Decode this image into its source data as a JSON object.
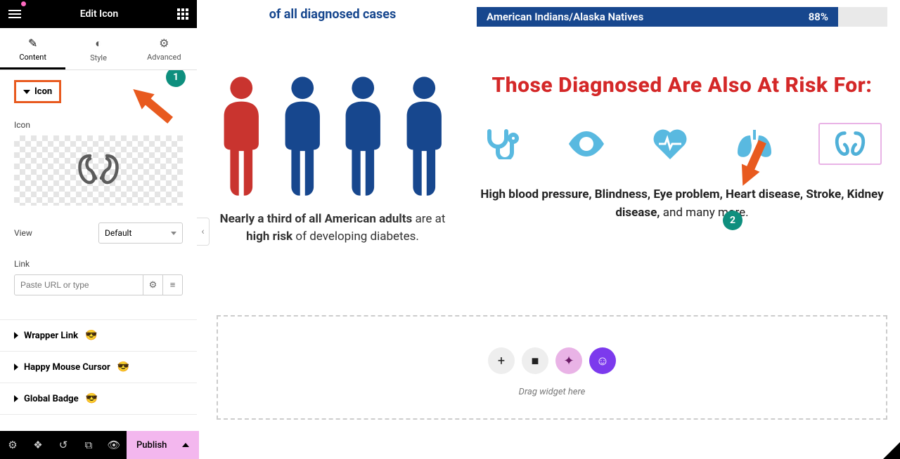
{
  "header": {
    "title": "Edit Icon"
  },
  "tabs": [
    {
      "label": "Content",
      "icon": "✎",
      "active": true
    },
    {
      "label": "Style",
      "icon": "◐",
      "active": false
    },
    {
      "label": "Advanced",
      "icon": "⚙",
      "active": false
    }
  ],
  "section": {
    "title": "Icon"
  },
  "fields": {
    "icon_label": "Icon",
    "view_label": "View",
    "view_value": "Default",
    "link_label": "Link",
    "link_placeholder": "Paste URL or type"
  },
  "accordions": [
    {
      "label": "Wrapper Link",
      "emoji": "😎"
    },
    {
      "label": "Happy Mouse Cursor",
      "emoji": "😎"
    },
    {
      "label": "Global Badge",
      "emoji": "😎"
    }
  ],
  "footer": {
    "publish": "Publish"
  },
  "callouts": {
    "one": "1",
    "two": "2"
  },
  "canvas": {
    "cases_heading": "of all diagnosed cases",
    "bar": {
      "label": "American Indians/Alaska Natives",
      "pct": "88%",
      "width_pct": 88,
      "fill": "#17478e",
      "track": "#e9e9e9"
    },
    "people": {
      "count": 4,
      "highlight_index": 0,
      "color_highlight": "#c9342f",
      "color_other": "#17478e"
    },
    "people_caption": {
      "p1a": "Nearly a third of all American adults ",
      "p1b": "are at ",
      "p1c": "high risk",
      "p1d": " of developing diabetes."
    },
    "risk_title": "Those Diagnosed Are Also At Risk For:",
    "risk_icons": [
      {
        "name": "stethoscope-icon"
      },
      {
        "name": "eye-icon"
      },
      {
        "name": "heartbeat-icon"
      },
      {
        "name": "lungs-icon"
      },
      {
        "name": "kidneys-icon",
        "selected": true
      }
    ],
    "risk_text": {
      "t1": "High blood pressure, Blindness, Eye problem, Heart disease, Stroke, Kidney disease,",
      "t2": " and many more."
    },
    "drop": {
      "text": "Drag widget here"
    }
  },
  "colors": {
    "accent_orange": "#e85a1f",
    "teal": "#0e8f7e",
    "red": "#d42828",
    "blue": "#17478e",
    "icon_blue": "#59b9e0",
    "pink": "#e9b3e6",
    "purple": "#7c3aed"
  }
}
